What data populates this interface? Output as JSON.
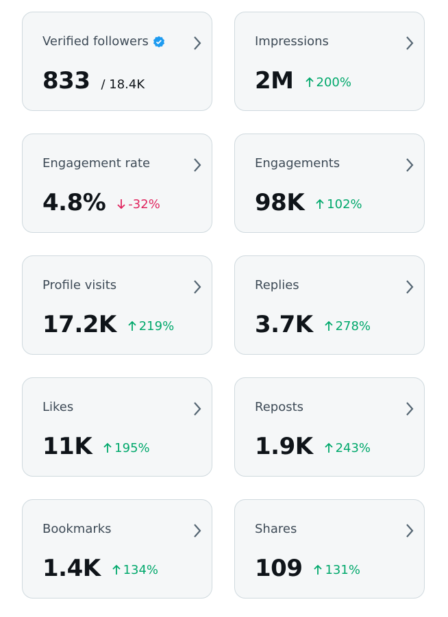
{
  "cards": [
    {
      "label": "Verified followers",
      "value": "833",
      "total": "/ 18.4K",
      "verified": true
    },
    {
      "label": "Impressions",
      "value": "2M",
      "change": "200%"
    },
    {
      "label": "Engagement rate",
      "value": "4.8%",
      "change": "-32%"
    },
    {
      "label": "Engagements",
      "value": "98K",
      "change": "102%"
    },
    {
      "label": "Profile visits",
      "value": "17.2K",
      "change": "219%"
    },
    {
      "label": "Replies",
      "value": "3.7K",
      "change": "278%"
    },
    {
      "label": "Likes",
      "value": "11K",
      "change": "195%"
    },
    {
      "label": "Reposts",
      "value": "1.9K",
      "change": "243%"
    },
    {
      "label": "Bookmarks",
      "value": "1.4K",
      "change": "134%"
    },
    {
      "label": "Shares",
      "value": "109",
      "change": "131%"
    }
  ]
}
